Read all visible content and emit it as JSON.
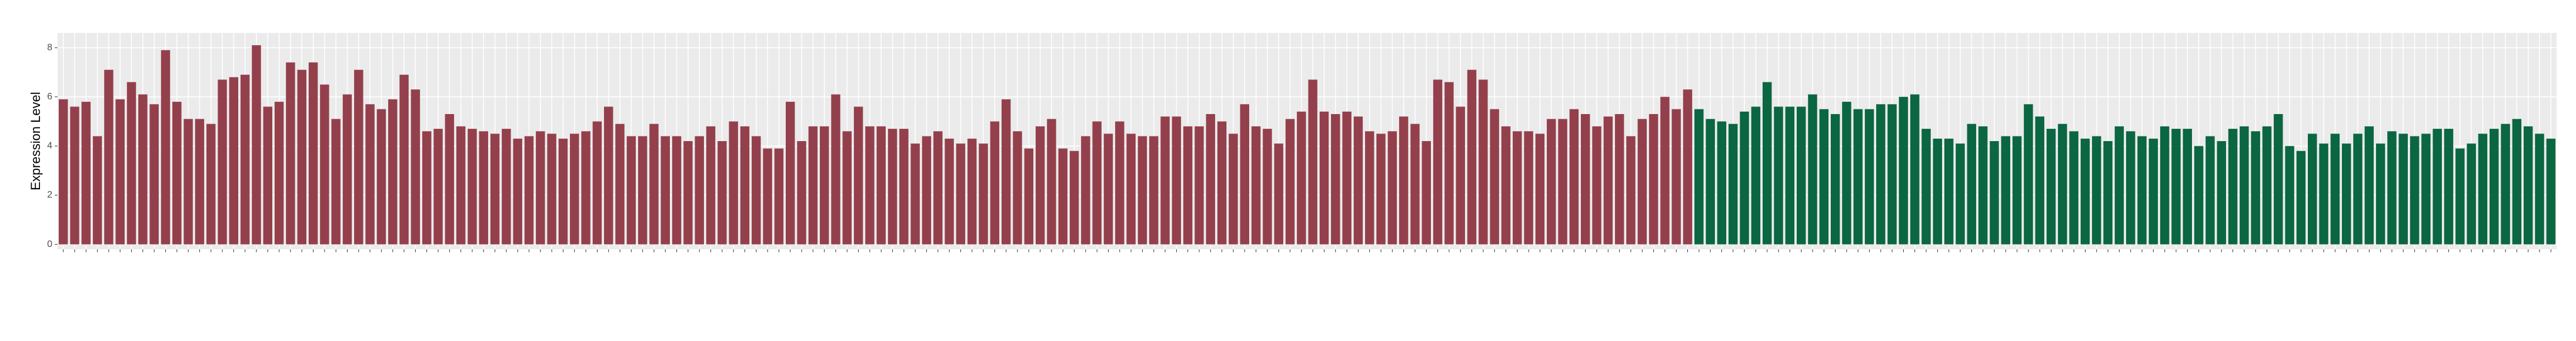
{
  "chart_data": {
    "type": "bar",
    "y_label": "Expression Level",
    "categories": [
      null,
      null,
      null,
      null,
      null,
      null,
      null,
      null,
      null,
      null,
      null,
      null,
      null,
      null,
      null,
      null,
      null,
      null,
      null,
      null,
      null,
      null,
      null,
      null,
      null,
      null,
      null,
      null,
      null,
      null,
      null,
      null,
      null,
      null,
      null,
      null,
      null,
      null,
      null,
      null,
      null,
      null,
      null,
      null,
      null,
      null,
      null,
      null,
      null,
      null,
      null,
      null,
      null,
      null,
      null,
      null,
      null,
      null,
      null,
      null,
      null,
      null,
      null,
      null,
      null,
      null,
      null,
      null,
      null,
      null,
      null,
      null,
      null,
      null,
      null,
      null,
      null,
      null,
      null,
      null,
      null,
      null,
      null,
      null,
      null,
      null,
      null,
      null,
      null,
      null,
      null,
      null,
      null,
      null,
      null,
      null,
      null,
      null,
      null,
      null,
      null,
      null,
      null,
      null,
      null,
      null,
      null,
      null,
      null,
      null,
      null,
      null,
      null,
      null,
      null,
      null,
      null,
      null,
      null,
      null,
      null,
      null,
      null,
      null,
      null,
      null,
      null,
      null,
      null,
      null,
      null,
      null,
      null,
      null,
      null,
      null,
      null,
      null,
      null,
      null,
      null,
      null,
      null,
      null,
      null,
      null,
      null,
      null,
      null,
      null,
      null,
      null,
      null,
      null,
      null,
      null,
      null,
      null,
      null,
      null,
      null,
      null,
      null,
      null,
      null,
      null,
      null,
      null,
      null,
      null,
      null,
      null,
      null,
      null,
      null,
      null,
      null,
      null,
      null,
      null,
      null,
      null,
      null,
      null,
      null,
      null,
      null,
      null,
      null,
      null,
      null,
      null,
      null,
      null,
      null,
      null,
      null,
      null,
      null,
      null,
      null,
      null,
      null,
      null,
      null,
      null,
      null,
      null,
      null,
      null,
      null,
      null,
      null,
      null,
      null,
      null,
      null,
      null,
      null,
      null
    ],
    "values": [
      5.9,
      5.6,
      5.8,
      4.4,
      7.1,
      5.9,
      6.6,
      6.1,
      5.7,
      7.9,
      5.8,
      5.1,
      5.1,
      4.9,
      6.7,
      6.8,
      6.9,
      8.1,
      5.6,
      5.8,
      7.4,
      7.1,
      7.4,
      6.5,
      5.1,
      6.1,
      7.1,
      5.7,
      5.5,
      5.9,
      6.9,
      6.3,
      4.6,
      4.7,
      5.3,
      4.8,
      4.7,
      4.6,
      4.5,
      4.7,
      4.3,
      4.4,
      4.6,
      4.5,
      4.3,
      4.5,
      4.6,
      5.0,
      5.6,
      4.9,
      4.4,
      4.4,
      4.9,
      4.4,
      4.4,
      4.2,
      4.4,
      4.8,
      4.2,
      5.0,
      4.8,
      4.4,
      3.9,
      3.9,
      5.8,
      4.2,
      4.8,
      4.8,
      6.1,
      4.6,
      5.6,
      4.8,
      4.8,
      4.7,
      4.7,
      4.1,
      4.4,
      4.6,
      4.3,
      4.1,
      4.3,
      4.1,
      5.0,
      5.9,
      4.6,
      3.9,
      4.8,
      5.1,
      3.9,
      3.8,
      4.4,
      5.0,
      4.5,
      5.0,
      4.5,
      4.4,
      4.4,
      5.2,
      5.2,
      4.8,
      4.8,
      5.3,
      5.0,
      4.5,
      5.7,
      4.8,
      4.7,
      4.1,
      5.1,
      5.4,
      6.7,
      5.4,
      5.3,
      5.4,
      5.2,
      4.6,
      4.5,
      4.6,
      5.2,
      4.9,
      4.2,
      6.7,
      6.6,
      5.6,
      7.1,
      6.7,
      5.5,
      4.8,
      4.6,
      4.6,
      4.5,
      5.1,
      5.1,
      5.5,
      5.3,
      4.8,
      5.2,
      5.3,
      4.4,
      5.1,
      5.3,
      6.0,
      5.5,
      6.3,
      5.5,
      5.1,
      5.0,
      4.9,
      5.4,
      5.6,
      6.6,
      5.6,
      5.6,
      5.6,
      6.1,
      5.5,
      5.3,
      5.8,
      5.5,
      5.5,
      5.7,
      5.7,
      6.0,
      6.1,
      4.7,
      4.3,
      4.3,
      4.1,
      4.9,
      4.8,
      4.2,
      4.4,
      4.4,
      5.7,
      5.2,
      4.7,
      4.9,
      4.6,
      4.3,
      4.4,
      4.2,
      4.8,
      4.6,
      4.4,
      4.3,
      4.8,
      4.7,
      4.7,
      4.0,
      4.4,
      4.2,
      4.7,
      4.8,
      4.6,
      4.8,
      5.3,
      4.0,
      3.8,
      4.5,
      4.1,
      4.5,
      4.1,
      4.5,
      4.8,
      4.1,
      4.6,
      4.5,
      4.4,
      4.5,
      4.7,
      4.7,
      3.9,
      4.1,
      4.5,
      4.7,
      4.9,
      5.1,
      4.8,
      4.5,
      4.3
    ],
    "colors": [
      "#94404c",
      "#94404c",
      "#94404c",
      "#94404c",
      "#94404c",
      "#94404c",
      "#94404c",
      "#94404c",
      "#94404c",
      "#94404c",
      "#94404c",
      "#94404c",
      "#94404c",
      "#94404c",
      "#94404c",
      "#94404c",
      "#94404c",
      "#94404c",
      "#94404c",
      "#94404c",
      "#94404c",
      "#94404c",
      "#94404c",
      "#94404c",
      "#94404c",
      "#94404c",
      "#94404c",
      "#94404c",
      "#94404c",
      "#94404c",
      "#94404c",
      "#94404c",
      "#94404c",
      "#94404c",
      "#94404c",
      "#94404c",
      "#94404c",
      "#94404c",
      "#94404c",
      "#94404c",
      "#94404c",
      "#94404c",
      "#94404c",
      "#94404c",
      "#94404c",
      "#94404c",
      "#94404c",
      "#94404c",
      "#94404c",
      "#94404c",
      "#94404c",
      "#94404c",
      "#94404c",
      "#94404c",
      "#94404c",
      "#94404c",
      "#94404c",
      "#94404c",
      "#94404c",
      "#94404c",
      "#94404c",
      "#94404c",
      "#94404c",
      "#94404c",
      "#94404c",
      "#94404c",
      "#94404c",
      "#94404c",
      "#94404c",
      "#94404c",
      "#94404c",
      "#94404c",
      "#94404c",
      "#94404c",
      "#94404c",
      "#94404c",
      "#94404c",
      "#94404c",
      "#94404c",
      "#94404c",
      "#94404c",
      "#94404c",
      "#94404c",
      "#94404c",
      "#94404c",
      "#94404c",
      "#94404c",
      "#94404c",
      "#94404c",
      "#94404c",
      "#94404c",
      "#94404c",
      "#94404c",
      "#94404c",
      "#94404c",
      "#94404c",
      "#94404c",
      "#94404c",
      "#94404c",
      "#94404c",
      "#94404c",
      "#94404c",
      "#94404c",
      "#94404c",
      "#94404c",
      "#94404c",
      "#94404c",
      "#94404c",
      "#94404c",
      "#94404c",
      "#94404c",
      "#94404c",
      "#94404c",
      "#94404c",
      "#94404c",
      "#94404c",
      "#94404c",
      "#94404c",
      "#94404c",
      "#94404c",
      "#94404c",
      "#94404c",
      "#94404c",
      "#94404c",
      "#94404c",
      "#94404c",
      "#94404c",
      "#94404c",
      "#94404c",
      "#94404c",
      "#94404c",
      "#94404c",
      "#94404c",
      "#94404c",
      "#94404c",
      "#94404c",
      "#94404c",
      "#94404c",
      "#94404c",
      "#94404c",
      "#94404c",
      "#94404c",
      "#94404c",
      "#94404c",
      "#0b6642",
      "#0b6642",
      "#0b6642",
      "#0b6642",
      "#0b6642",
      "#0b6642",
      "#0b6642",
      "#0b6642",
      "#0b6642",
      "#0b6642",
      "#0b6642",
      "#0b6642",
      "#0b6642",
      "#0b6642",
      "#0b6642",
      "#0b6642",
      "#0b6642",
      "#0b6642",
      "#0b6642",
      "#0b6642",
      "#0b6642",
      "#0b6642",
      "#0b6642",
      "#0b6642",
      "#0b6642",
      "#0b6642",
      "#0b6642",
      "#0b6642",
      "#0b6642",
      "#0b6642",
      "#0b6642",
      "#0b6642",
      "#0b6642",
      "#0b6642",
      "#0b6642",
      "#0b6642",
      "#0b6642",
      "#0b6642",
      "#0b6642",
      "#0b6642",
      "#0b6642",
      "#0b6642",
      "#0b6642",
      "#0b6642",
      "#0b6642",
      "#0b6642",
      "#0b6642",
      "#0b6642",
      "#0b6642",
      "#0b6642",
      "#0b6642",
      "#0b6642",
      "#0b6642",
      "#0b6642",
      "#0b6642",
      "#0b6642",
      "#0b6642",
      "#0b6642",
      "#0b6642",
      "#0b6642",
      "#0b6642",
      "#0b6642",
      "#0b6642",
      "#0b6642",
      "#0b6642",
      "#0b6642",
      "#0b6642",
      "#0b6642",
      "#0b6642",
      "#0b6642",
      "#0b6642",
      "#0b6642",
      "#0b6642",
      "#0b6642",
      "#0b6642",
      "#0b6642"
    ],
    "ylim": [
      -0.2,
      8.6
    ],
    "yticks": [
      0,
      2,
      4,
      6,
      8
    ],
    "grid": true
  }
}
